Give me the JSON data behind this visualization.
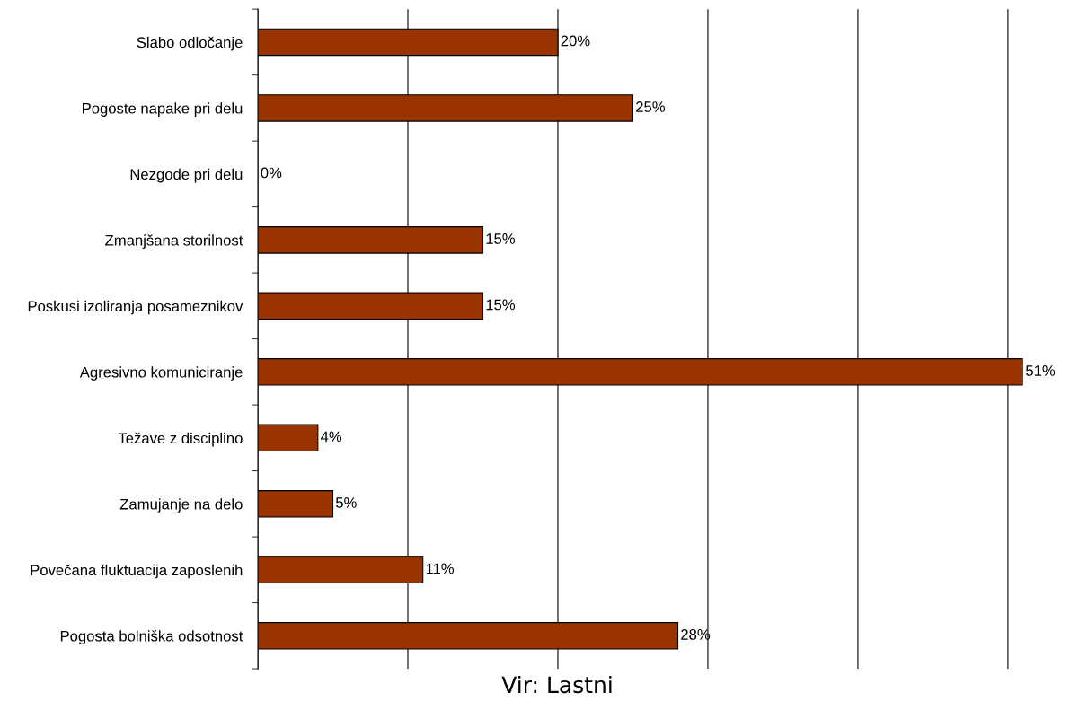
{
  "chart_data": {
    "type": "bar",
    "orientation": "horizontal",
    "categories": [
      "Slabo odločanje",
      "Pogoste napake pri delu",
      "Nezgode pri delu",
      "Zmanjšana storilnost",
      "Poskusi izoliranja posameznikov",
      "Agresivno komuniciranje",
      "Težave z disciplino",
      "Zamujanje na delo",
      "Povečana fluktuacija zaposlenih",
      "Pogosta bolniška odsotnost"
    ],
    "values": [
      20,
      25,
      0,
      15,
      15,
      51,
      4,
      5,
      11,
      28
    ],
    "value_labels": [
      "20%",
      "25%",
      "0%",
      "15%",
      "15%",
      "51%",
      "4%",
      "5%",
      "11%",
      "28%"
    ],
    "color": "#993300",
    "xticks": [
      {
        "value": 0,
        "label": null
      },
      {
        "value": 10,
        "label": null
      },
      {
        "value": 20,
        "label": null
      },
      {
        "value": 30,
        "label": null
      },
      {
        "value": 40,
        "label": null
      },
      {
        "value": 50,
        "label": null
      }
    ],
    "tick_labels": "y",
    "grid": "x",
    "legend": false,
    "annotations": [
      "Vir: Lastni"
    ]
  }
}
